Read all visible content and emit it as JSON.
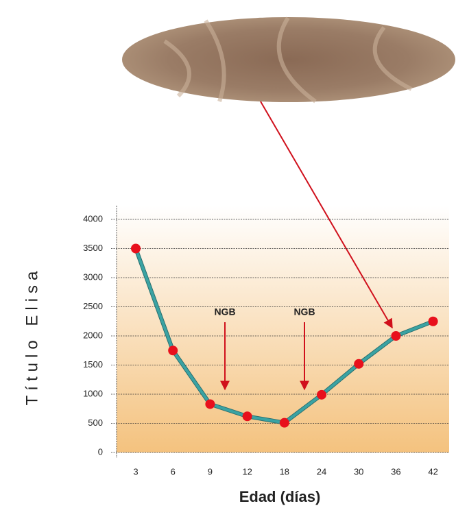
{
  "chart_data": {
    "type": "line",
    "x_label": "Edad (días)",
    "y_label": "Título Elisa",
    "categories": [
      "3",
      "6",
      "9",
      "12",
      "18",
      "24",
      "30",
      "36",
      "42"
    ],
    "series": [
      {
        "name": "Título Elisa",
        "color": "#3aa3a3",
        "marker_color": "#e8101c",
        "values": [
          3500,
          1750,
          830,
          620,
          510,
          990,
          1520,
          2000,
          2250
        ]
      }
    ],
    "ylim": [
      0,
      4000
    ],
    "yticks": [
      0,
      500,
      1000,
      1500,
      2000,
      2500,
      3000,
      3500,
      4000
    ],
    "grid": true,
    "annotations": [
      {
        "text": "NGB"
      },
      {
        "text": "NGB"
      }
    ]
  }
}
